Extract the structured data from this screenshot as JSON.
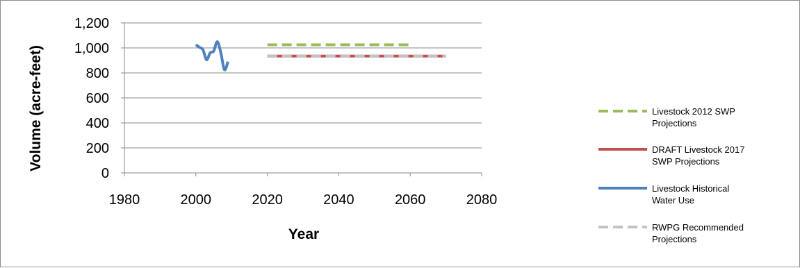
{
  "chart_data": {
    "type": "line",
    "title": "",
    "xlabel": "Year",
    "ylabel": "Volume (acre-feet)",
    "xlim": [
      1980,
      2080
    ],
    "ylim": [
      0,
      1200
    ],
    "xticks": [
      1980,
      2000,
      2020,
      2040,
      2060,
      2080
    ],
    "yticks": [
      0,
      200,
      400,
      600,
      800,
      1000,
      1200
    ],
    "xtick_labels": [
      "1980",
      "2000",
      "2020",
      "2040",
      "2060",
      "2080"
    ],
    "ytick_labels": [
      "0",
      "200",
      "400",
      "600",
      "800",
      "1,000",
      "1,200"
    ],
    "grid": "horizontal",
    "legend_position": "right",
    "series": [
      {
        "name": "Livestock 2012 SWP Projections",
        "color": "#9bbb59",
        "style": "dashed",
        "x": [
          2020,
          2030,
          2040,
          2050,
          2060
        ],
        "y": [
          1025,
          1025,
          1025,
          1025,
          1025
        ]
      },
      {
        "name": "DRAFT Livestock 2017 SWP Projections",
        "color": "#c0504d",
        "style": "solid",
        "x": [
          2020,
          2030,
          2040,
          2050,
          2060,
          2070
        ],
        "y": [
          935,
          935,
          935,
          935,
          935,
          935
        ]
      },
      {
        "name": "Livestock Historical Water Use",
        "color": "#4f81bd",
        "style": "solid",
        "x": [
          2000,
          2001,
          2002,
          2003,
          2004,
          2005,
          2006,
          2007,
          2008,
          2009
        ],
        "y": [
          1025,
          1005,
          985,
          905,
          960,
          975,
          1050,
          960,
          825,
          890
        ]
      },
      {
        "name": "RWPG Recommended Projections",
        "color": "#c3c3c3",
        "style": "dashed",
        "x": [
          2020,
          2030,
          2040,
          2050,
          2060,
          2070
        ],
        "y": [
          935,
          935,
          935,
          935,
          935,
          935
        ]
      }
    ]
  }
}
